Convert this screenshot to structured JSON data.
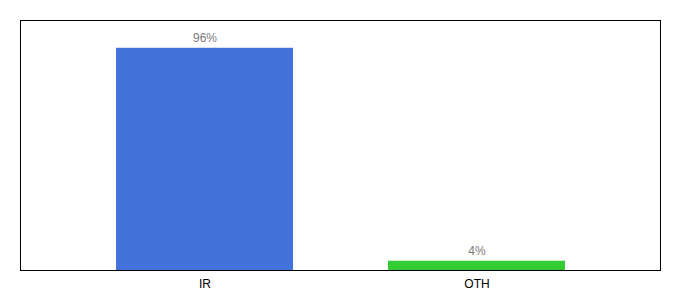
{
  "chart_data": {
    "type": "bar",
    "categories": [
      "IR",
      "OTH"
    ],
    "values": [
      96,
      4
    ],
    "value_labels": [
      "96%",
      "4%"
    ],
    "colors": [
      "#4472db",
      "#33cc33"
    ],
    "ylim": [
      0,
      108
    ],
    "yticks": [],
    "data_labels": true,
    "tick_labels": "x",
    "grid": false
  }
}
